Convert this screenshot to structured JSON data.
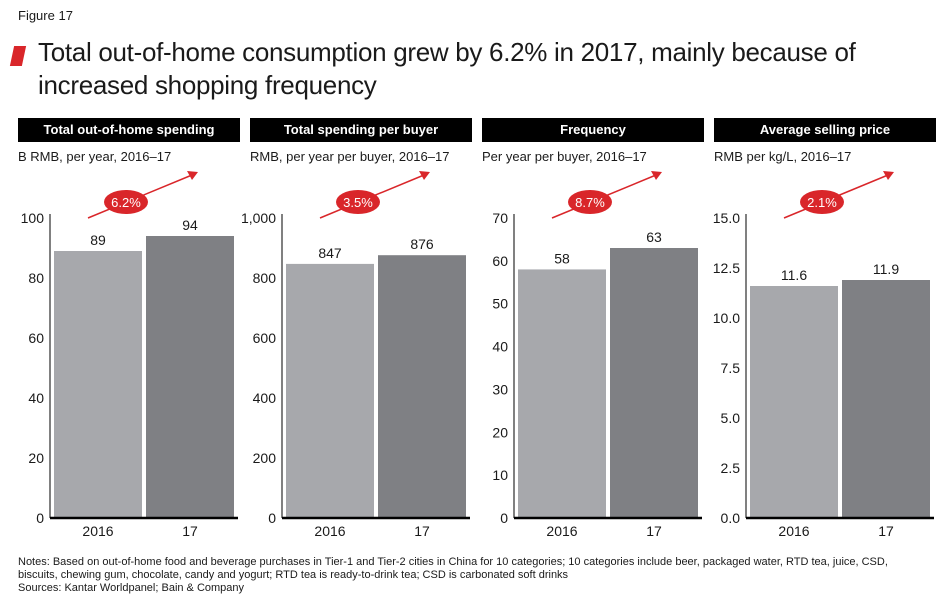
{
  "figure_label": "Figure 17",
  "title": "Total out-of-home consumption grew by 6.2% in 2017, mainly because of increased shopping frequency",
  "colors": {
    "bar_2016": "#a7a8ac",
    "bar_2017": "#7f8084",
    "accent": "#d9262a",
    "header_bg": "#000000"
  },
  "chart_data": [
    {
      "type": "bar",
      "title": "Total out-of-home spending",
      "subtitle": "B RMB, per year, 2016–17",
      "categories": [
        "2016",
        "17"
      ],
      "values": [
        89,
        94
      ],
      "value_labels": [
        "89",
        "94"
      ],
      "ylim": [
        0,
        100
      ],
      "yticks": [
        "0",
        "20",
        "40",
        "60",
        "80",
        "100"
      ],
      "growth_label": "6.2%"
    },
    {
      "type": "bar",
      "title": "Total spending per buyer",
      "subtitle": "RMB, per year per buyer, 2016–17",
      "categories": [
        "2016",
        "17"
      ],
      "values": [
        847,
        876
      ],
      "value_labels": [
        "847",
        "876"
      ],
      "ylim": [
        0,
        1000
      ],
      "yticks": [
        "0",
        "200",
        "400",
        "600",
        "800",
        "1,000"
      ],
      "growth_label": "3.5%"
    },
    {
      "type": "bar",
      "title": "Frequency",
      "subtitle": "Per year per buyer, 2016–17",
      "categories": [
        "2016",
        "17"
      ],
      "values": [
        58,
        63
      ],
      "value_labels": [
        "58",
        "63"
      ],
      "ylim": [
        0,
        70
      ],
      "yticks": [
        "0",
        "10",
        "20",
        "30",
        "40",
        "50",
        "60",
        "70"
      ],
      "growth_label": "8.7%"
    },
    {
      "type": "bar",
      "title": "Average selling price",
      "subtitle": "RMB per kg/L, 2016–17",
      "categories": [
        "2016",
        "17"
      ],
      "values": [
        11.6,
        11.9
      ],
      "value_labels": [
        "11.6",
        "11.9"
      ],
      "ylim": [
        0,
        15
      ],
      "yticks": [
        "0.0",
        "2.5",
        "5.0",
        "7.5",
        "10.0",
        "12.5",
        "15.0"
      ],
      "growth_label": "2.1%"
    }
  ],
  "notes": [
    "Notes: Based on out-of-home food and beverage purchases in Tier-1 and Tier-2 cities in China for 10 categories; 10 categories include beer, packaged water, RTD tea, juice, CSD,",
    "biscuits, chewing gum, chocolate, candy and yogurt; RTD tea is ready-to-drink tea; CSD is carbonated soft drinks",
    "Sources: Kantar Worldpanel; Bain & Company"
  ]
}
